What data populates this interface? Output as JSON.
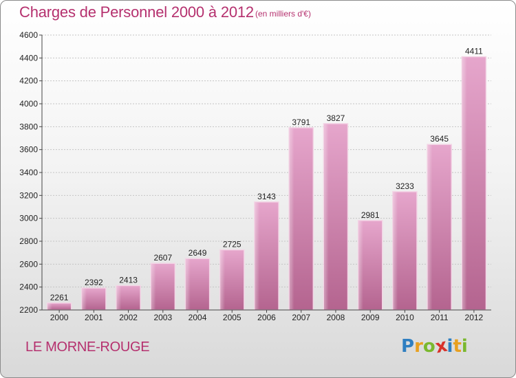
{
  "chart_data": {
    "type": "bar",
    "title": "Charges de Personnel 2000 à 2012",
    "subtitle": "(en milliers d'€)",
    "categories": [
      "2000",
      "2001",
      "2002",
      "2003",
      "2004",
      "2005",
      "2006",
      "2007",
      "2008",
      "2009",
      "2010",
      "2011",
      "2012"
    ],
    "values": [
      2261,
      2392,
      2413,
      2607,
      2649,
      2725,
      3143,
      3791,
      3827,
      2981,
      3233,
      3645,
      4411
    ],
    "ylim": [
      2200,
      4600
    ],
    "yticks": [
      2200,
      2400,
      2600,
      2800,
      3000,
      3200,
      3400,
      3600,
      3800,
      4000,
      4200,
      4400,
      4600
    ],
    "xlabel": "",
    "ylabel": "",
    "grid": true,
    "bar_color": "#c8609a"
  },
  "commune": "LE MORNE-ROUGE",
  "logo": {
    "letters": [
      "P",
      "r",
      "o",
      "x",
      "i",
      "t",
      "i"
    ],
    "colors": [
      "#2f7fc1",
      "#e8a020",
      "#7ab82e",
      "#d8312a",
      "#2f7fc1",
      "#e8a020",
      "#7ab82e"
    ]
  },
  "colors": {
    "accent": "#b5306e",
    "bar": "#c8609a"
  }
}
